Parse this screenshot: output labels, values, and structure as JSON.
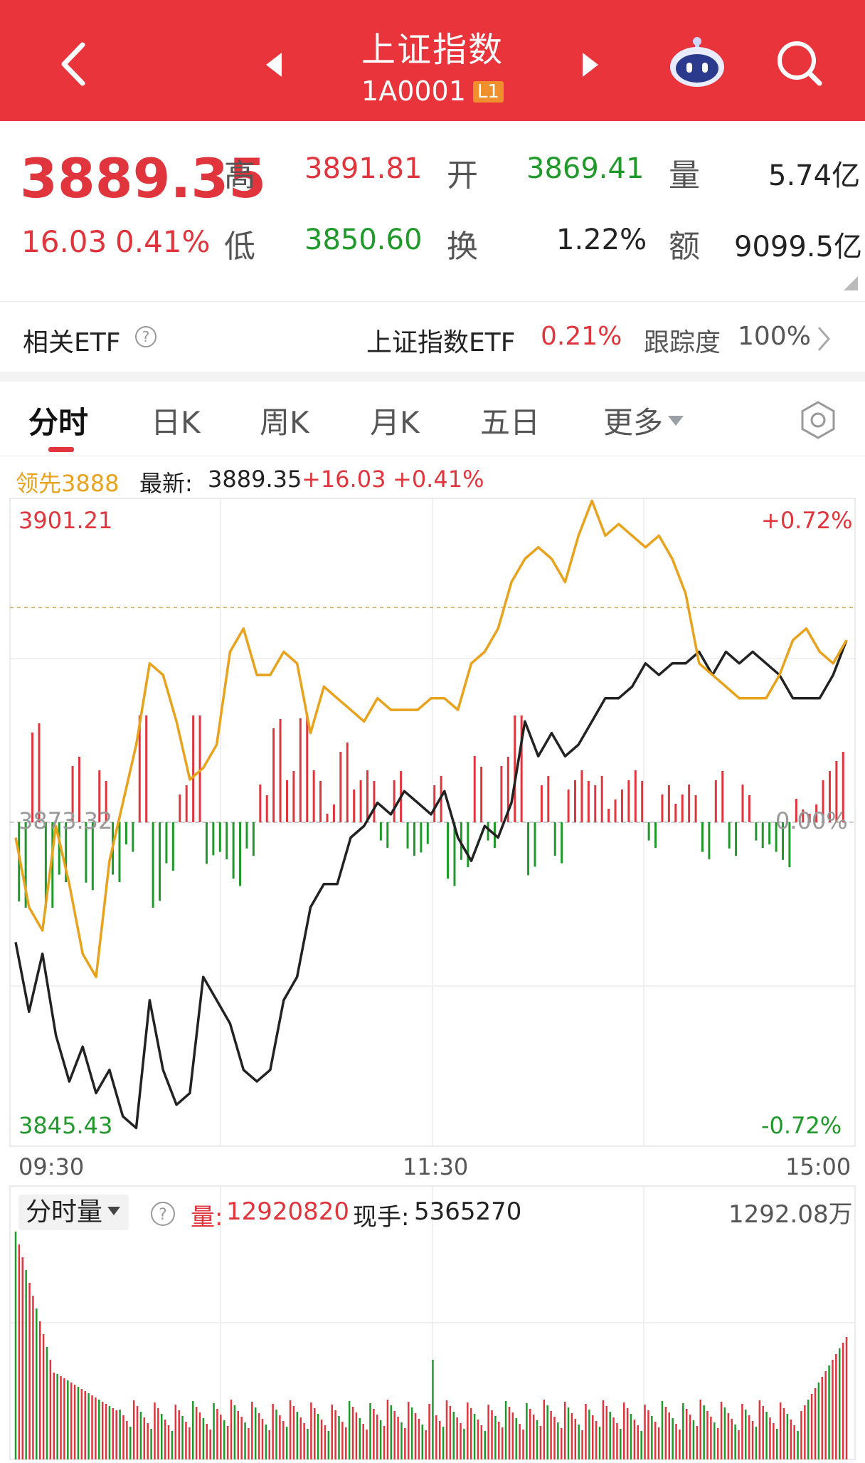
{
  "header": {
    "title": "上证指数",
    "code": "1A0001",
    "level_badge": "L1"
  },
  "quote": {
    "price": "3889.35",
    "change": "16.03",
    "change_pct": "0.41%",
    "high_label": "高",
    "high": "3891.81",
    "open_label": "开",
    "open": "3869.41",
    "volume_label": "量",
    "volume": "5.74亿",
    "low_label": "低",
    "low": "3850.60",
    "turnover_label": "换",
    "turnover": "1.22%",
    "amount_label": "额",
    "amount": "9099.5亿"
  },
  "etf": {
    "label": "相关ETF",
    "name": "上证指数ETF",
    "pct": "0.21%",
    "tracking_label": "跟踪度",
    "tracking": "100%"
  },
  "tabs": [
    {
      "label": "分时"
    },
    {
      "label": "日K"
    },
    {
      "label": "周K"
    },
    {
      "label": "月K"
    },
    {
      "label": "五日"
    },
    {
      "label": "更多"
    }
  ],
  "legend": {
    "leader": "领先3888",
    "latest_label": "最新:",
    "latest": "3889.35",
    "change": "+16.03",
    "change_pct": "+0.41%"
  },
  "axis": {
    "y_top": "3901.21",
    "y_mid": "3873.32",
    "y_bottom": "3845.43",
    "pct_top": "+0.72%",
    "pct_mid": "0.00%",
    "pct_bottom": "-0.72%",
    "x_start": "09:30",
    "x_mid": "11:30",
    "x_end": "15:00"
  },
  "volume_panel": {
    "selector": "分时量",
    "vol_label": "量:",
    "vol": "12920820",
    "hand_label": "现手:",
    "hand": "5365270",
    "max": "1292.08万"
  },
  "colors": {
    "header_bg": "#e8343a",
    "up": "#e0353c",
    "down": "#1f9a2a",
    "leader_line": "#e8a21c",
    "price_line": "#222222"
  },
  "chart_data": {
    "type": "line",
    "ylim": [
      3845.43,
      3901.21
    ],
    "reference": 3873.32,
    "series": [
      {
        "values": [
          3863,
          3857,
          3862,
          3855,
          3851,
          3854,
          3850,
          3852,
          3848,
          3847,
          3858,
          3852,
          3849,
          3850,
          3860,
          3858,
          3856,
          3852,
          3851,
          3852,
          3858,
          3860,
          3866,
          3868,
          3868,
          3872,
          3873,
          3875,
          3874,
          3876,
          3875,
          3874,
          3876,
          3872,
          3870,
          3873,
          3872,
          3875,
          3882,
          3879,
          3881,
          3879,
          3880,
          3882,
          3884,
          3884,
          3885,
          3887,
          3886,
          3887,
          3887,
          3888,
          3886,
          3888,
          3887,
          3888,
          3887,
          3886,
          3884,
          3884,
          3884,
          3886,
          3889
        ]
      },
      {
        "values": [
          3872,
          3866,
          3864,
          3873,
          3868,
          3862,
          3860,
          3870,
          3875,
          3880,
          3887,
          3886,
          3882,
          3877,
          3878,
          3880,
          3888,
          3890,
          3886,
          3886,
          3888,
          3887,
          3881,
          3885,
          3884,
          3883,
          3882,
          3884,
          3883,
          3883,
          3883,
          3884,
          3884,
          3883,
          3887,
          3888,
          3890,
          3894,
          3896,
          3897,
          3896,
          3894,
          3898,
          3901,
          3898,
          3899,
          3898,
          3897,
          3898,
          3896,
          3893,
          3887,
          3886,
          3885,
          3884,
          3884,
          3884,
          3886,
          3889,
          3890,
          3888,
          3887,
          3889
        ]
      }
    ]
  }
}
